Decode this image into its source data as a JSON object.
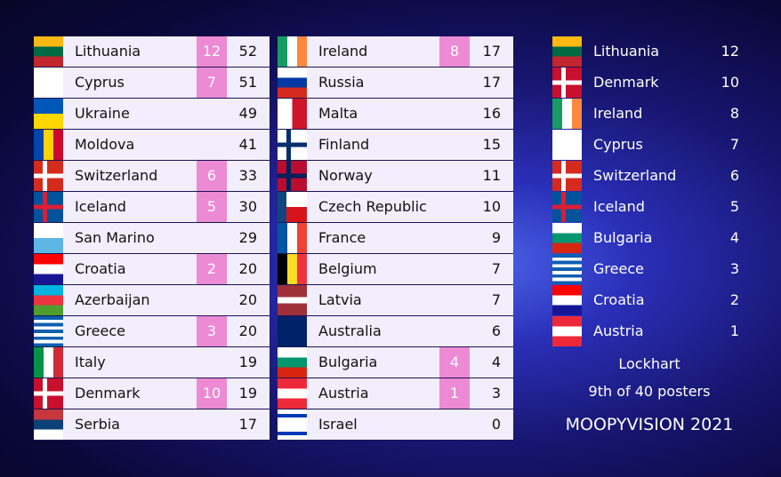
{
  "scoreboard": {
    "left": [
      {
        "country": "Lithuania",
        "points": 12,
        "total": 52
      },
      {
        "country": "Cyprus",
        "points": 7,
        "total": 51
      },
      {
        "country": "Ukraine",
        "points": null,
        "total": 49
      },
      {
        "country": "Moldova",
        "points": null,
        "total": 41
      },
      {
        "country": "Switzerland",
        "points": 6,
        "total": 33
      },
      {
        "country": "Iceland",
        "points": 5,
        "total": 30
      },
      {
        "country": "San Marino",
        "points": null,
        "total": 29
      },
      {
        "country": "Croatia",
        "points": 2,
        "total": 20
      },
      {
        "country": "Azerbaijan",
        "points": null,
        "total": 20
      },
      {
        "country": "Greece",
        "points": 3,
        "total": 20
      },
      {
        "country": "Italy",
        "points": null,
        "total": 19
      },
      {
        "country": "Denmark",
        "points": 10,
        "total": 19
      },
      {
        "country": "Serbia",
        "points": null,
        "total": 17
      }
    ],
    "middle": [
      {
        "country": "Ireland",
        "points": 8,
        "total": 17
      },
      {
        "country": "Russia",
        "points": null,
        "total": 17
      },
      {
        "country": "Malta",
        "points": null,
        "total": 16
      },
      {
        "country": "Finland",
        "points": null,
        "total": 15
      },
      {
        "country": "Norway",
        "points": null,
        "total": 11
      },
      {
        "country": "Czech Republic",
        "points": null,
        "total": 10
      },
      {
        "country": "France",
        "points": null,
        "total": 9
      },
      {
        "country": "Belgium",
        "points": null,
        "total": 7
      },
      {
        "country": "Latvia",
        "points": null,
        "total": 7
      },
      {
        "country": "Australia",
        "points": null,
        "total": 6
      },
      {
        "country": "Bulgaria",
        "points": 4,
        "total": 4
      },
      {
        "country": "Austria",
        "points": 1,
        "total": 3
      },
      {
        "country": "Israel",
        "points": null,
        "total": 0
      }
    ],
    "given": [
      {
        "country": "Lithuania",
        "points": 12
      },
      {
        "country": "Denmark",
        "points": 10
      },
      {
        "country": "Ireland",
        "points": 8
      },
      {
        "country": "Cyprus",
        "points": 7
      },
      {
        "country": "Switzerland",
        "points": 6
      },
      {
        "country": "Iceland",
        "points": 5
      },
      {
        "country": "Bulgaria",
        "points": 4
      },
      {
        "country": "Greece",
        "points": 3
      },
      {
        "country": "Croatia",
        "points": 2
      },
      {
        "country": "Austria",
        "points": 1
      }
    ]
  },
  "footer": {
    "voter": "Lockhart",
    "rank": "9th of 40 posters",
    "show": "MOOPYVISION 2021"
  }
}
